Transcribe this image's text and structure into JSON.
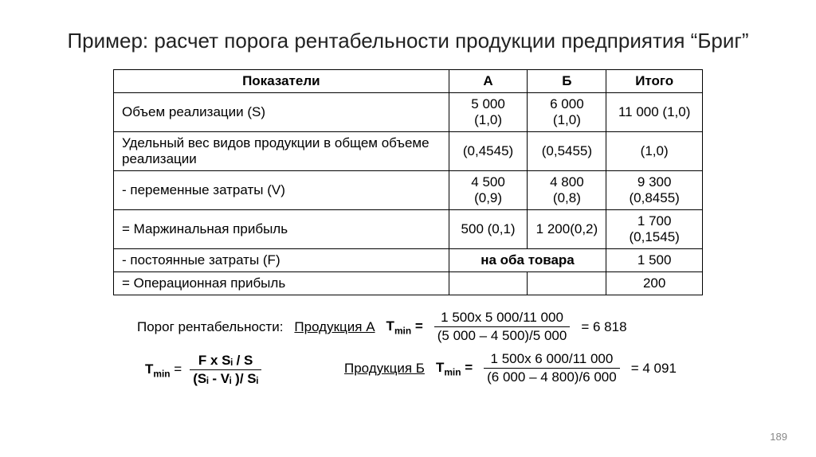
{
  "title": "Пример: расчет порога рентабельности продукции предприятия “Бриг”",
  "table": {
    "headers": {
      "c0": "Показатели",
      "c1": "А",
      "c2": "Б",
      "c3": "Итого"
    },
    "rows": {
      "r0": {
        "label": "Объем реализации (S)",
        "a": "5 000 (1,0)",
        "b": "6 000 (1,0)",
        "total": "11 000 (1,0)"
      },
      "r1": {
        "label": "Удельный вес видов продукции в общем объеме реализации",
        "a": "(0,4545)",
        "b": "(0,5455)",
        "total": "(1,0)"
      },
      "r2": {
        "label": "- переменные затраты (V)",
        "a": "4 500 (0,9)",
        "b": "4 800 (0,8)",
        "total": "9 300 (0,8455)"
      },
      "r3": {
        "label": "= Маржинальная прибыль",
        "a": "500 (0,1)",
        "b": "1 200(0,2)",
        "total": "1 700 (0,1545)"
      },
      "r4": {
        "label": "- постоянные затраты (F)",
        "merged": "на оба товара",
        "total": "1 500"
      },
      "r5": {
        "label": "= Операционная прибыль",
        "a": "",
        "b": "",
        "total": "200"
      }
    }
  },
  "formulas": {
    "heading": "Порог рентабельности:",
    "prodA": "Продукция А",
    "prodB": "Продукция Б",
    "tmin_label": "T",
    "tmin_sub": "min",
    "general_num": "F x Sᵢ / S",
    "general_den": "(Sᵢ - Vᵢ )/ Sᵢ",
    "a_num": "1 500x 5 000/11 000",
    "a_den": "(5 000 – 4 500)/5 000",
    "a_res": "= 6 818",
    "b_num": "1 500x 6 000/11 000",
    "b_den": "(6 000 – 4 800)/6 000",
    "b_res": "= 4 091",
    "eq": "="
  },
  "pagenum": "189"
}
